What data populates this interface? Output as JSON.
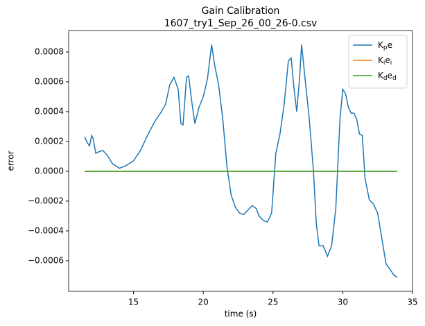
{
  "chart_data": {
    "type": "line",
    "title": "Gain Calibration",
    "subtitle": "1607_try1_Sep_26_00_26-0.csv",
    "x_label": "time (s)",
    "y_label": "error",
    "xlim": [
      10.35,
      35
    ],
    "ylim": [
      -0.000805,
      0.000944
    ],
    "xticks": [
      15,
      20,
      25,
      30,
      35
    ],
    "yticks": [
      {
        "value": -0.0006,
        "label": "−0.0006"
      },
      {
        "value": -0.0004,
        "label": "−0.0004"
      },
      {
        "value": -0.0002,
        "label": "−0.0002"
      },
      {
        "value": 0,
        "label": "0.0000"
      },
      {
        "value": 0.0002,
        "label": "0.0002"
      },
      {
        "value": 0.0004,
        "label": "0.0004"
      },
      {
        "value": 0.0006,
        "label": "0.0006"
      },
      {
        "value": 0.0008,
        "label": "0.0008"
      }
    ],
    "grid": false,
    "legend": "upper right",
    "series": [
      {
        "name": "K_pe",
        "color": "#1f77b4",
        "x": [
          11.5,
          11.7,
          11.85,
          12.0,
          12.1,
          12.3,
          12.5,
          12.8,
          13.1,
          13.5,
          14.0,
          14.5,
          15.0,
          15.5,
          16.0,
          16.5,
          17.0,
          17.3,
          17.6,
          17.9,
          18.2,
          18.4,
          18.55,
          18.8,
          18.95,
          19.2,
          19.4,
          19.7,
          20.0,
          20.3,
          20.6,
          20.8,
          21.1,
          21.4,
          21.7,
          22.0,
          22.3,
          22.6,
          22.9,
          23.2,
          23.5,
          23.8,
          24.0,
          24.3,
          24.6,
          24.9,
          25.2,
          25.5,
          25.8,
          26.1,
          26.3,
          26.5,
          26.7,
          26.9,
          27.05,
          27.3,
          27.6,
          27.9,
          28.1,
          28.3,
          28.6,
          28.9,
          29.2,
          29.5,
          29.8,
          30.0,
          30.2,
          30.4,
          30.6,
          30.8,
          31.0,
          31.2,
          31.4,
          31.6,
          31.9,
          32.2,
          32.5,
          32.8,
          33.1,
          33.4,
          33.7,
          33.9
        ],
        "values": [
          0.00023,
          0.00019,
          0.00017,
          0.00024,
          0.00022,
          0.00012,
          0.00013,
          0.00014,
          0.00011,
          5e-05,
          2e-05,
          4e-05,
          7e-05,
          0.00014,
          0.00024,
          0.00033,
          0.0004,
          0.00045,
          0.00058,
          0.00063,
          0.00055,
          0.00032,
          0.00031,
          0.00063,
          0.00064,
          0.00045,
          0.00032,
          0.00043,
          0.0005,
          0.00062,
          0.00085,
          0.00072,
          0.00058,
          0.00035,
          3e-05,
          -0.00016,
          -0.00024,
          -0.00028,
          -0.00029,
          -0.00026,
          -0.00023,
          -0.00025,
          -0.0003,
          -0.00033,
          -0.00034,
          -0.00028,
          0.00012,
          0.00025,
          0.00045,
          0.00074,
          0.00076,
          0.00056,
          0.0004,
          0.00062,
          0.00085,
          0.00062,
          0.00035,
          0.0,
          -0.00035,
          -0.0005,
          -0.0005,
          -0.00057,
          -0.0005,
          -0.00025,
          0.00035,
          0.00055,
          0.00052,
          0.00043,
          0.00039,
          0.00039,
          0.00035,
          0.00025,
          0.00024,
          -5e-05,
          -0.00019,
          -0.00022,
          -0.00028,
          -0.00045,
          -0.00062,
          -0.00066,
          -0.0007,
          -0.00071
        ]
      },
      {
        "name": "K_ie_i",
        "color": "#ff7f0e",
        "x": [
          11.5,
          33.9
        ],
        "values": [
          0,
          0
        ]
      },
      {
        "name": "K_de_d",
        "color": "#2ca02c",
        "x": [
          11.5,
          33.9
        ],
        "values": [
          0,
          0
        ]
      }
    ]
  }
}
